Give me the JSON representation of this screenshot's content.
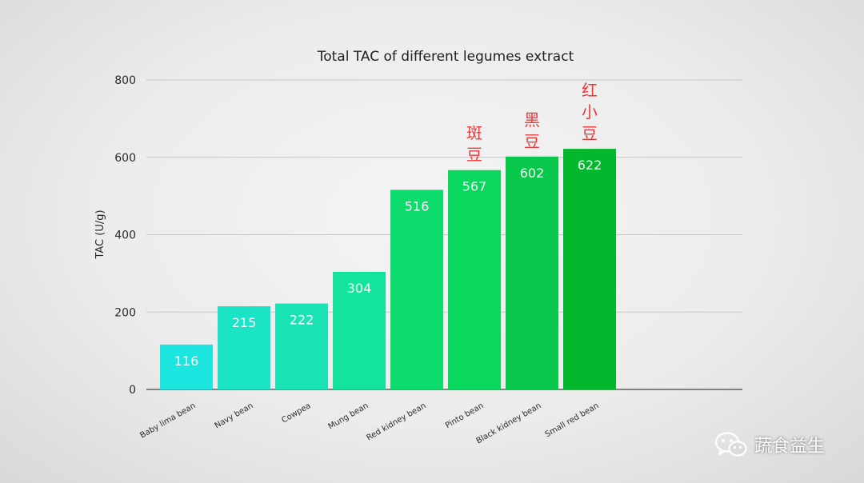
{
  "chart_data": {
    "type": "bar",
    "title": "Total TAC of different legumes extract",
    "ylabel": "TAC (U/g)",
    "xlabel": "",
    "ylim": [
      0,
      800
    ],
    "yticks": [
      0,
      200,
      400,
      600,
      800
    ],
    "grid": true,
    "categories": [
      "Baby lima bean",
      "Navy bean",
      "Cowpea",
      "Mung bean",
      "Red kidney bean",
      "Pinto bean",
      "Black kidney bean",
      "Small red bean"
    ],
    "values": [
      116,
      215,
      222,
      304,
      516,
      567,
      602,
      622
    ],
    "colors": [
      "#1de5df",
      "#1be4c6",
      "#19e2b5",
      "#14e39c",
      "#0ddc6d",
      "#0bd65e",
      "#08c94b",
      "#03b82d"
    ],
    "annotations": [
      {
        "category": "Pinto bean",
        "text": "斑豆"
      },
      {
        "category": "Black kidney bean",
        "text": "黑豆"
      },
      {
        "category": "Small red bean",
        "text": "红小豆"
      }
    ]
  },
  "watermark": {
    "text": "蔬食益生",
    "icon": "wechat-icon"
  }
}
